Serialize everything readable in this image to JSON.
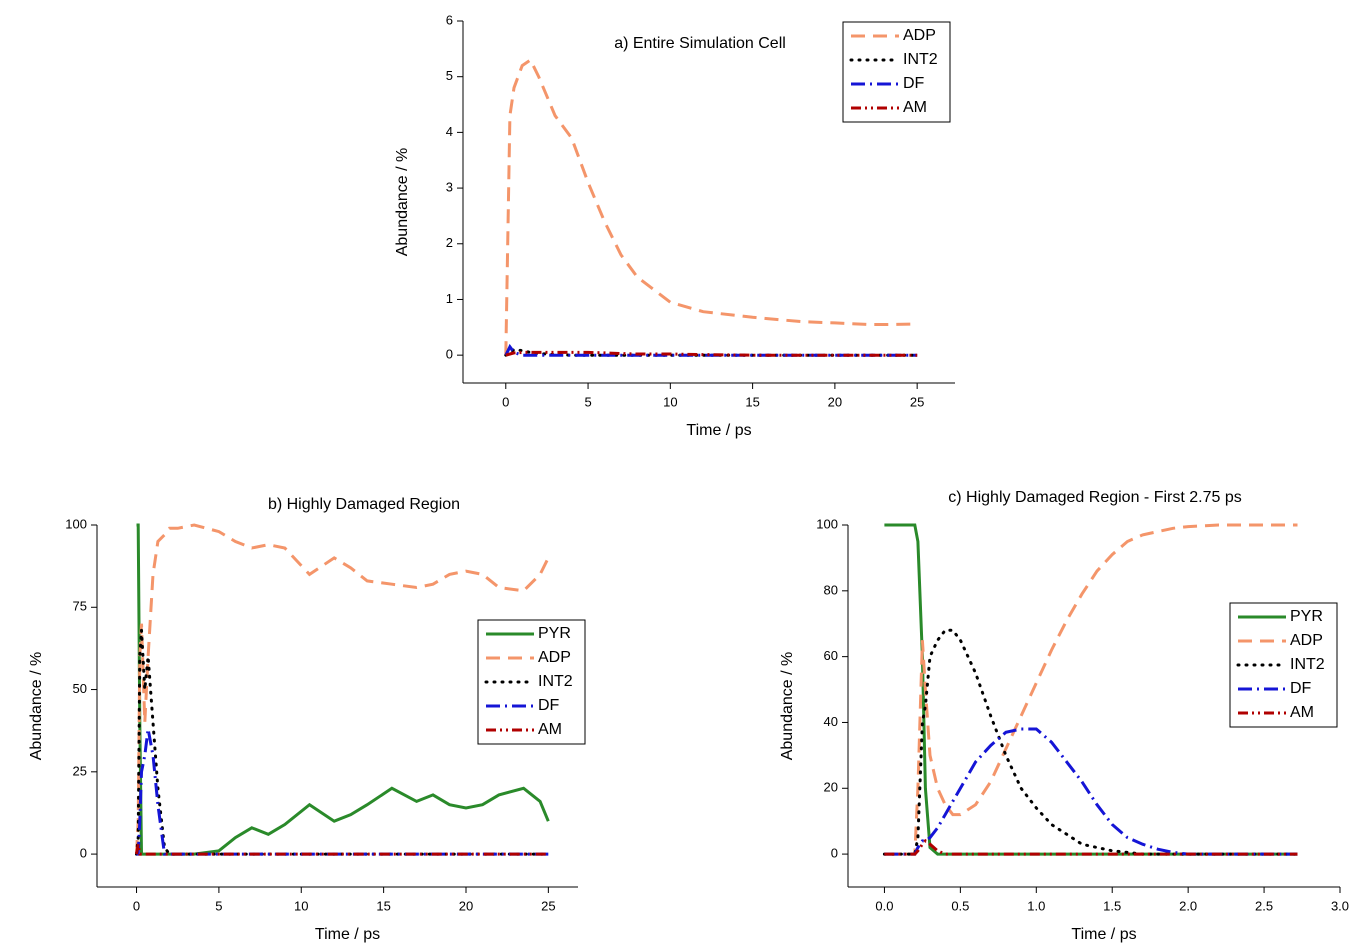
{
  "chart_data": [
    {
      "type": "line",
      "title": "a) Entire Simulation Cell",
      "x_label": "Time / ps",
      "y_label": "Abundance / %",
      "legend": "upper right",
      "x": [
        0,
        0.25,
        0.5,
        1,
        1.5,
        2,
        3,
        4,
        5,
        6,
        7,
        8,
        10,
        12,
        15,
        18,
        20,
        22,
        23,
        25
      ],
      "series": [
        {
          "name": "ADP",
          "color": "#f4956a",
          "style": "dashed",
          "values": [
            0,
            4.3,
            4.8,
            5.2,
            5.3,
            5.0,
            4.3,
            3.9,
            3.1,
            2.4,
            1.8,
            1.4,
            0.95,
            0.78,
            0.68,
            0.6,
            0.58,
            0.55,
            0.55,
            0.56
          ]
        },
        {
          "name": "INT2",
          "color": "#000000",
          "style": "dotted",
          "values": [
            0,
            0.05,
            0.1,
            0.08,
            0.05,
            0.03,
            0.01,
            0,
            0,
            0,
            0,
            0,
            0,
            0,
            0,
            0,
            0,
            0,
            0,
            0
          ]
        },
        {
          "name": "DF",
          "color": "#1515d6",
          "style": "dash-dot",
          "values": [
            0,
            0.15,
            0.05,
            0,
            0,
            0,
            0,
            0,
            0,
            0,
            0,
            0,
            0,
            0,
            0,
            0,
            0,
            0,
            0,
            0
          ]
        },
        {
          "name": "AM",
          "color": "#b00000",
          "style": "dash-dot-dot",
          "values": [
            0,
            0.02,
            0.04,
            0.05,
            0.05,
            0.05,
            0.05,
            0.05,
            0.05,
            0.04,
            0.03,
            0.02,
            0.02,
            0.01,
            0,
            0,
            0,
            0,
            0,
            0
          ]
        }
      ],
      "xlim": [
        -2.6,
        27.3
      ],
      "xticks": [
        0,
        5,
        10,
        15,
        20,
        25
      ],
      "ylim": [
        -0.5,
        6
      ],
      "yticks": [
        0,
        1,
        2,
        3,
        4,
        5,
        6
      ]
    },
    {
      "type": "line",
      "title": "b) Highly Damaged Region",
      "x_label": "Time / ps",
      "y_label": "Abundance / %",
      "legend": "center right",
      "x": [
        0,
        0.1,
        0.2,
        0.3,
        0.5,
        0.7,
        1,
        1.3,
        1.7,
        2,
        2.5,
        3.5,
        5,
        6,
        7,
        8,
        9,
        10.5,
        12,
        13,
        14,
        15.5,
        17,
        18,
        19,
        20,
        21,
        22,
        23.5,
        24.5,
        25
      ],
      "series": [
        {
          "name": "PYR",
          "color": "#2a8a2a",
          "style": "solid",
          "values": [
            100,
            100,
            40,
            0,
            0,
            0,
            0,
            0,
            0,
            0,
            0,
            0,
            1,
            5,
            8,
            6,
            9,
            15,
            10,
            12,
            15,
            20,
            16,
            18,
            15,
            14,
            15,
            18,
            20,
            16,
            10
          ]
        },
        {
          "name": "ADP",
          "color": "#f4956a",
          "style": "dashed",
          "values": [
            0,
            10,
            60,
            70,
            40,
            60,
            85,
            95,
            97,
            99,
            99,
            100,
            98,
            95,
            93,
            94,
            93,
            85,
            90,
            87,
            83,
            82,
            81,
            82,
            85,
            86,
            85,
            81,
            80,
            85,
            90
          ]
        },
        {
          "name": "INT2",
          "color": "#000000",
          "style": "dotted",
          "values": [
            0,
            5,
            60,
            68,
            50,
            60,
            40,
            20,
            2,
            0,
            0,
            0,
            0,
            0,
            0,
            0,
            0,
            0,
            0,
            0,
            0,
            0,
            0,
            0,
            0,
            0,
            0,
            0,
            0,
            0,
            0
          ]
        },
        {
          "name": "DF",
          "color": "#1515d6",
          "style": "dash-dot",
          "values": [
            0,
            0,
            10,
            25,
            30,
            38,
            30,
            15,
            0,
            0,
            0,
            0,
            0,
            0,
            0,
            0,
            0,
            0,
            0,
            0,
            0,
            0,
            0,
            0,
            0,
            0,
            0,
            0,
            0,
            0,
            0
          ]
        },
        {
          "name": "AM",
          "color": "#b00000",
          "style": "dash-dot-dot",
          "values": [
            0,
            3,
            0,
            0,
            0,
            0,
            0,
            0,
            0,
            0,
            0,
            0,
            0,
            0,
            0,
            0,
            0,
            0,
            0,
            0,
            0,
            0,
            0,
            0,
            0,
            0,
            0,
            0,
            0,
            0,
            0
          ]
        }
      ],
      "xlim": [
        -2.4,
        26.8
      ],
      "xticks": [
        0,
        5,
        10,
        15,
        20,
        25
      ],
      "ylim": [
        -10,
        100
      ],
      "yticks": [
        0,
        25,
        50,
        75,
        100
      ]
    },
    {
      "type": "line",
      "title": "c) Highly Damaged Region - First 2.75 ps",
      "x_label": "Time / ps",
      "y_label": "Abundance / %",
      "legend": "center right",
      "x": [
        0,
        0.1,
        0.2,
        0.22,
        0.25,
        0.27,
        0.3,
        0.35,
        0.4,
        0.45,
        0.5,
        0.6,
        0.7,
        0.8,
        0.9,
        1.0,
        1.1,
        1.2,
        1.3,
        1.4,
        1.5,
        1.6,
        1.7,
        1.8,
        1.9,
        2.0,
        2.2,
        2.4,
        2.6,
        2.72
      ],
      "series": [
        {
          "name": "PYR",
          "color": "#2a8a2a",
          "style": "solid",
          "values": [
            100,
            100,
            100,
            95,
            60,
            20,
            2,
            0,
            0,
            0,
            0,
            0,
            0,
            0,
            0,
            0,
            0,
            0,
            0,
            0,
            0,
            0,
            0,
            0,
            0,
            0,
            0,
            0,
            0,
            0
          ]
        },
        {
          "name": "ADP",
          "color": "#f4956a",
          "style": "dashed",
          "values": [
            0,
            0,
            0,
            20,
            65,
            50,
            30,
            20,
            15,
            12,
            12,
            15,
            22,
            32,
            42,
            52,
            62,
            71,
            79,
            86,
            91,
            95,
            97,
            98,
            99,
            99.5,
            100,
            100,
            100,
            100
          ]
        },
        {
          "name": "INT2",
          "color": "#000000",
          "style": "dotted",
          "values": [
            0,
            0,
            0,
            5,
            40,
            45,
            60,
            65,
            68,
            68,
            65,
            55,
            42,
            30,
            20,
            14,
            9,
            6,
            3,
            2,
            1,
            0.5,
            0,
            0,
            0,
            0,
            0,
            0,
            0,
            0
          ]
        },
        {
          "name": "DF",
          "color": "#1515d6",
          "style": "dash-dot",
          "values": [
            0,
            0,
            0,
            2,
            4,
            4,
            5,
            8,
            12,
            16,
            20,
            28,
            33,
            37,
            38,
            38,
            34,
            28,
            22,
            15,
            9,
            5,
            3,
            1.5,
            0.5,
            0,
            0,
            0,
            0,
            0
          ]
        },
        {
          "name": "AM",
          "color": "#b00000",
          "style": "dash-dot-dot",
          "values": [
            0,
            0,
            0,
            1,
            3,
            4,
            3,
            1,
            0,
            0,
            0,
            0,
            0,
            0,
            0,
            0,
            0,
            0,
            0,
            0,
            0,
            0,
            0,
            0,
            0,
            0,
            0,
            0,
            0,
            0
          ]
        }
      ],
      "xlim": [
        -0.24,
        3.0
      ],
      "xticks": [
        {
          "value": 0,
          "label": "0.0"
        },
        0.5,
        {
          "value": 1,
          "label": "1.0"
        },
        1.5,
        {
          "value": 2,
          "label": "2.0"
        },
        2.5,
        {
          "value": 3,
          "label": "3.0"
        }
      ],
      "ylim": [
        -10,
        100
      ],
      "yticks": [
        0,
        20,
        40,
        60,
        80,
        100
      ]
    }
  ]
}
